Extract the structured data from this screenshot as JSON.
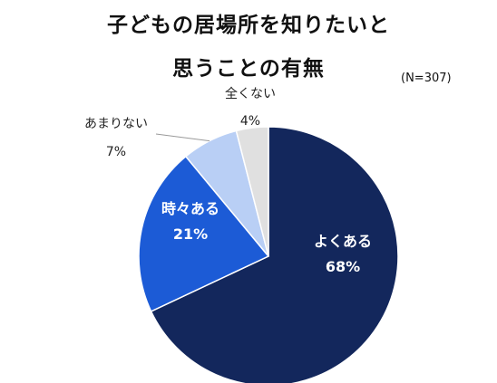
{
  "chart_data": {
    "type": "pie",
    "title_lines": [
      "子どもの居場所を知りたいと",
      "思うことの有無"
    ],
    "note": "(N=307)",
    "start_angle_deg": 0,
    "direction": "clockwise",
    "slices": [
      {
        "label": "よくある",
        "value": 68,
        "value_text": "68%",
        "color": "#13275c",
        "label_color": "#ffffff",
        "label_placement": "inside"
      },
      {
        "label": "時々ある",
        "value": 21,
        "value_text": "21%",
        "color": "#1c5bd6",
        "label_color": "#ffffff",
        "label_placement": "inside"
      },
      {
        "label": "あまりない",
        "value": 7,
        "value_text": "7%",
        "color": "#b9cff5",
        "label_color": "#222222",
        "label_placement": "outside"
      },
      {
        "label": "全くない",
        "value": 4,
        "value_text": "4%",
        "color": "#e0e0e0",
        "label_color": "#222222",
        "label_placement": "outside"
      }
    ]
  }
}
